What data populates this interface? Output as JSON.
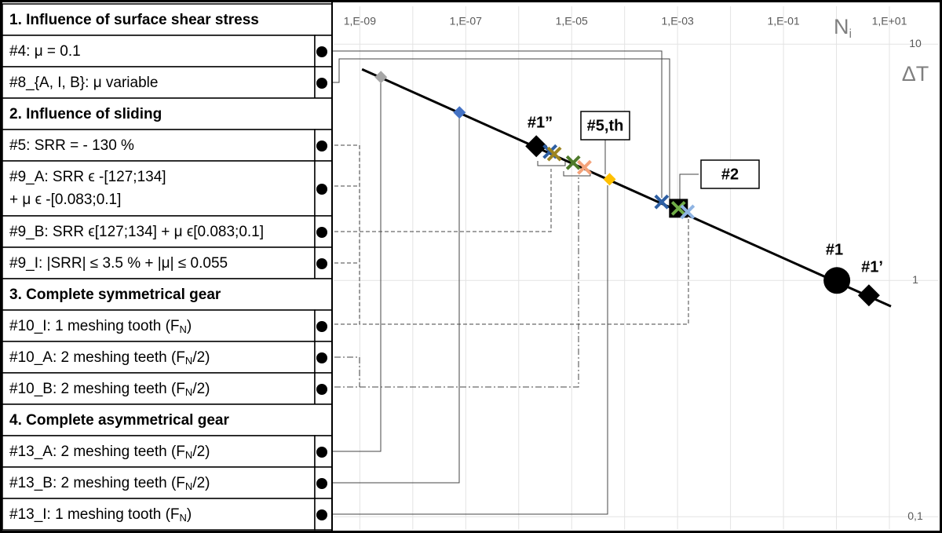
{
  "chart_data": {
    "type": "scatter",
    "legend_sections": [
      {
        "title": "1. Influence of surface shear stress",
        "items": [
          {
            "label": "#4: μ = 0.1"
          },
          {
            "label": "#8_{A, I, B}: μ variable"
          }
        ]
      },
      {
        "title": "2. Influence of sliding",
        "items": [
          {
            "label": "#5: SRR = - 130 %"
          },
          {
            "label": "#9_A: SRR ϵ -[127;134]",
            "label2": "+ μ ϵ -[0.083;0.1]"
          },
          {
            "label": "#9_B: SRR ϵ[127;134] + μ ϵ[0.083;0.1]"
          },
          {
            "label": "#9_I: |SRR| ≤ 3.5 % + |μ| ≤ 0.055"
          }
        ]
      },
      {
        "title": "3. Complete symmetrical gear",
        "items": [
          {
            "label": "#10_I: 1 meshing tooth (F",
            "sub": "N",
            "tail": ")"
          },
          {
            "label": "#10_A: 2 meshing teeth (F",
            "sub": "N",
            "tail": "/2)"
          },
          {
            "label": "#10_B: 2 meshing teeth (F",
            "sub": "N",
            "tail": "/2)"
          }
        ]
      },
      {
        "title": "4. Complete asymmetrical gear",
        "items": [
          {
            "label": "#13_A: 2 meshing teeth (F",
            "sub": "N",
            "tail": "/2)"
          },
          {
            "label": "#13_B: 2 meshing teeth (F",
            "sub": "N",
            "tail": "/2)"
          },
          {
            "label": "#13_I: 1 meshing tooth (F",
            "sub": "N",
            "tail": ")"
          }
        ]
      }
    ],
    "xlabel": "N",
    "xlabel_sub": "i",
    "ylabel": "ΔT",
    "xscale": "log",
    "yscale": "log",
    "grid": true,
    "xlim": [
      3.2e-10,
      83
    ],
    "ylim": [
      0.088,
      14.8
    ],
    "xticks": [
      {
        "value": 1e-09,
        "label": "1,E-09"
      },
      {
        "value": 1e-07,
        "label": "1,E-07"
      },
      {
        "value": 1e-05,
        "label": "1,E-05"
      },
      {
        "value": 0.001,
        "label": "1,E-03"
      },
      {
        "value": 0.1,
        "label": "1,E-01"
      },
      {
        "value": 10,
        "label": "1,E+01"
      }
    ],
    "x_minor_ticks": [
      1e-08,
      1e-06,
      0.0001,
      0.01,
      1
    ],
    "yticks": [
      10,
      1,
      {
        "value": 0.1,
        "label": "0,1"
      }
    ],
    "trend": {
      "color": "#000000",
      "x": [
        1.1e-09,
        10.7
      ],
      "values": [
        7.83,
        0.777
      ]
    },
    "points": [
      {
        "x": 2.5e-09,
        "y": 7.25,
        "color": "#a6a6a6",
        "marker": "diamond"
      },
      {
        "x": 7.6e-08,
        "y": 5.14,
        "color": "#4472c4",
        "marker": "diamond"
      },
      {
        "x": 2.15e-06,
        "y": 3.7,
        "color": "#000000",
        "marker": "big-diamond"
      },
      {
        "x": 3.9e-06,
        "y": 3.51,
        "color": "#2e5fa3",
        "marker": "x"
      },
      {
        "x": 4.7e-06,
        "y": 3.43,
        "color": "#9c8420",
        "marker": "x"
      },
      {
        "x": 1.07e-05,
        "y": 3.15,
        "color": "#4e7a2a",
        "marker": "x"
      },
      {
        "x": 1.74e-05,
        "y": 3.01,
        "color": "#f4a37a",
        "marker": "x"
      },
      {
        "x": 5.2e-05,
        "y": 2.68,
        "color": "#ffc000",
        "marker": "diamond"
      },
      {
        "x": 0.0005,
        "y": 2.15,
        "color": "#2e5fa3",
        "marker": "x"
      },
      {
        "x": 0.00104,
        "y": 2.02,
        "color": "#70ad47",
        "marker": "x-square"
      },
      {
        "x": 0.00154,
        "y": 1.95,
        "color": "#8fb4e3",
        "marker": "x"
      },
      {
        "x": 1.02,
        "y": 1.0,
        "color": "#000000",
        "marker": "circle"
      },
      {
        "x": 4.1,
        "y": 0.865,
        "color": "#000000",
        "marker": "big-diamond"
      }
    ],
    "annotations": [
      {
        "text": "#1”",
        "boxed": false
      },
      {
        "text": "#5,th",
        "boxed": true
      },
      {
        "text": "#2",
        "boxed": true
      },
      {
        "text": "#1",
        "boxed": false
      },
      {
        "text": "#1’",
        "boxed": false
      }
    ]
  }
}
